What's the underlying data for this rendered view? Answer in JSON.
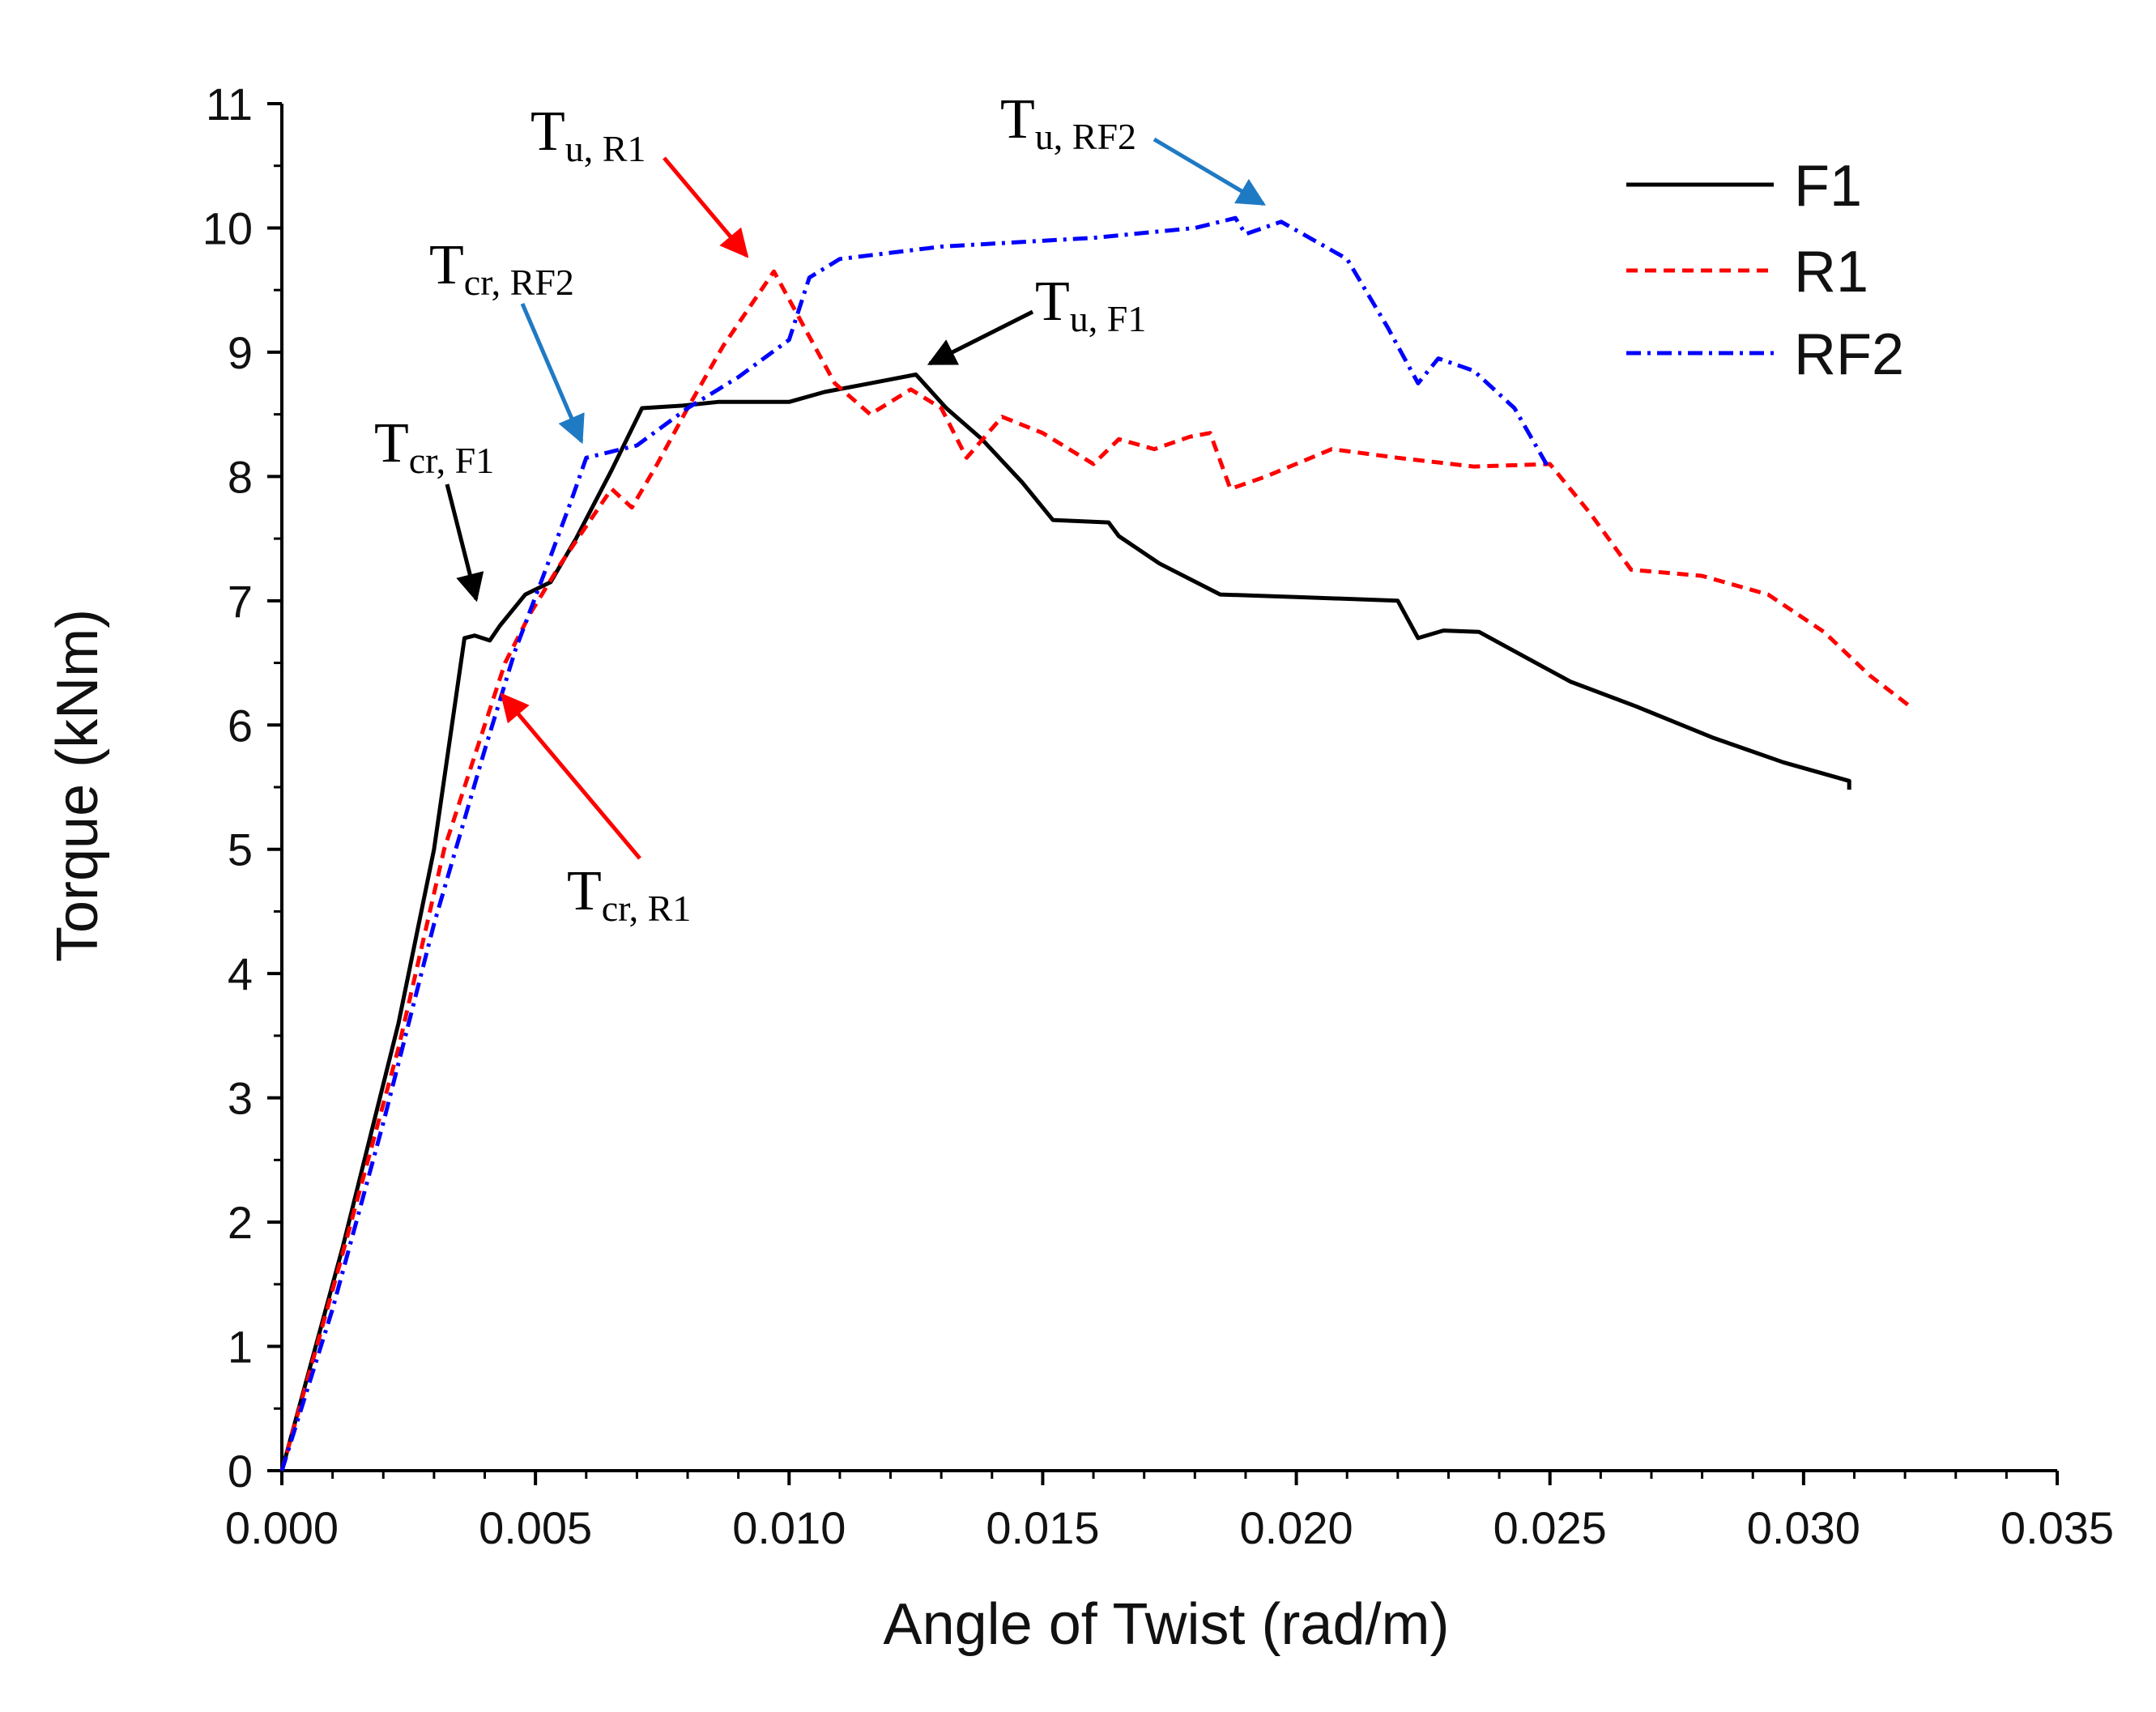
{
  "chart_data": {
    "type": "line",
    "xlabel": "Angle of Twist (rad/m)",
    "ylabel": "Torque (kNm)",
    "xlim": [
      0,
      0.035
    ],
    "ylim": [
      0,
      11
    ],
    "x_ticks": [
      "0.000",
      "0.005",
      "0.010",
      "0.015",
      "0.020",
      "0.025",
      "0.030",
      "0.035"
    ],
    "y_ticks": [
      "0",
      "1",
      "2",
      "3",
      "4",
      "5",
      "6",
      "7",
      "8",
      "9",
      "10",
      "11"
    ],
    "legend_position": "top-right",
    "series": [
      {
        "name": "F1",
        "color": "#000000",
        "dash": "solid",
        "points": [
          [
            0,
            0
          ],
          [
            0.0012,
            1.8
          ],
          [
            0.0023,
            3.6
          ],
          [
            0.003,
            5.0
          ],
          [
            0.0036,
            6.7
          ],
          [
            0.0038,
            6.72
          ],
          [
            0.0041,
            6.68
          ],
          [
            0.0043,
            6.8
          ],
          [
            0.0048,
            7.05
          ],
          [
            0.0053,
            7.15
          ],
          [
            0.0058,
            7.5
          ],
          [
            0.0065,
            8.05
          ],
          [
            0.0071,
            8.55
          ],
          [
            0.0079,
            8.57
          ],
          [
            0.0086,
            8.6
          ],
          [
            0.01,
            8.6
          ],
          [
            0.0107,
            8.68
          ],
          [
            0.0116,
            8.75
          ],
          [
            0.0125,
            8.82
          ],
          [
            0.0131,
            8.55
          ],
          [
            0.0138,
            8.3
          ],
          [
            0.0146,
            7.95
          ],
          [
            0.0152,
            7.65
          ],
          [
            0.0163,
            7.63
          ],
          [
            0.0165,
            7.52
          ],
          [
            0.0173,
            7.3
          ],
          [
            0.0185,
            7.05
          ],
          [
            0.02,
            7.03
          ],
          [
            0.022,
            7.0
          ],
          [
            0.0224,
            6.7
          ],
          [
            0.0229,
            6.76
          ],
          [
            0.0236,
            6.75
          ],
          [
            0.0245,
            6.55
          ],
          [
            0.0254,
            6.35
          ],
          [
            0.0267,
            6.15
          ],
          [
            0.0282,
            5.9
          ],
          [
            0.0296,
            5.7
          ],
          [
            0.0309,
            5.55
          ],
          [
            0.0309,
            5.48
          ]
        ]
      },
      {
        "name": "R1",
        "color": "#ff0000",
        "dash": "dashed",
        "points": [
          [
            0,
            0
          ],
          [
            0.0011,
            1.6
          ],
          [
            0.0023,
            3.4
          ],
          [
            0.0032,
            5.0
          ],
          [
            0.004,
            6.0
          ],
          [
            0.0044,
            6.5
          ],
          [
            0.0049,
            6.9
          ],
          [
            0.0055,
            7.3
          ],
          [
            0.006,
            7.6
          ],
          [
            0.0065,
            7.9
          ],
          [
            0.0069,
            7.75
          ],
          [
            0.0074,
            8.1
          ],
          [
            0.008,
            8.55
          ],
          [
            0.0087,
            9.05
          ],
          [
            0.0092,
            9.35
          ],
          [
            0.0097,
            9.65
          ],
          [
            0.0103,
            9.2
          ],
          [
            0.0109,
            8.75
          ],
          [
            0.0116,
            8.5
          ],
          [
            0.0124,
            8.7
          ],
          [
            0.013,
            8.55
          ],
          [
            0.0135,
            8.15
          ],
          [
            0.0142,
            8.48
          ],
          [
            0.015,
            8.35
          ],
          [
            0.016,
            8.1
          ],
          [
            0.0165,
            8.3
          ],
          [
            0.0172,
            8.22
          ],
          [
            0.0179,
            8.32
          ],
          [
            0.0183,
            8.35
          ],
          [
            0.0187,
            7.9
          ],
          [
            0.0194,
            8.0
          ],
          [
            0.0207,
            8.22
          ],
          [
            0.022,
            8.15
          ],
          [
            0.0235,
            8.08
          ],
          [
            0.025,
            8.1
          ],
          [
            0.0258,
            7.7
          ],
          [
            0.0266,
            7.25
          ],
          [
            0.028,
            7.2
          ],
          [
            0.0293,
            7.05
          ],
          [
            0.0304,
            6.75
          ],
          [
            0.0313,
            6.4
          ],
          [
            0.0321,
            6.15
          ]
        ]
      },
      {
        "name": "RF2",
        "color": "#0000ff",
        "dash": "dashdot",
        "points": [
          [
            0,
            0
          ],
          [
            0.001,
            1.3
          ],
          [
            0.002,
            2.8
          ],
          [
            0.003,
            4.4
          ],
          [
            0.004,
            5.8
          ],
          [
            0.0046,
            6.6
          ],
          [
            0.0052,
            7.25
          ],
          [
            0.0057,
            7.8
          ],
          [
            0.006,
            8.15
          ],
          [
            0.007,
            8.25
          ],
          [
            0.008,
            8.55
          ],
          [
            0.009,
            8.8
          ],
          [
            0.01,
            9.1
          ],
          [
            0.0104,
            9.6
          ],
          [
            0.011,
            9.75
          ],
          [
            0.013,
            9.85
          ],
          [
            0.016,
            9.92
          ],
          [
            0.018,
            10.0
          ],
          [
            0.0188,
            10.08
          ],
          [
            0.019,
            9.95
          ],
          [
            0.0197,
            10.05
          ],
          [
            0.021,
            9.75
          ],
          [
            0.0218,
            9.2
          ],
          [
            0.0224,
            8.75
          ],
          [
            0.0228,
            8.95
          ],
          [
            0.0235,
            8.85
          ],
          [
            0.0243,
            8.55
          ],
          [
            0.025,
            8.05
          ]
        ]
      }
    ],
    "annotations": [
      {
        "main": "T",
        "sub": "cr, F1",
        "color": "#000000"
      },
      {
        "main": "T",
        "sub": "cr, RF2",
        "color": "#1f7ac4"
      },
      {
        "main": "T",
        "sub": "u, R1",
        "color": "#ff0000"
      },
      {
        "main": "T",
        "sub": "u, RF2",
        "color": "#1f7ac4"
      },
      {
        "main": "T",
        "sub": "u, F1",
        "color": "#000000"
      },
      {
        "main": "T",
        "sub": "cr, R1",
        "color": "#ff0000"
      }
    ]
  }
}
